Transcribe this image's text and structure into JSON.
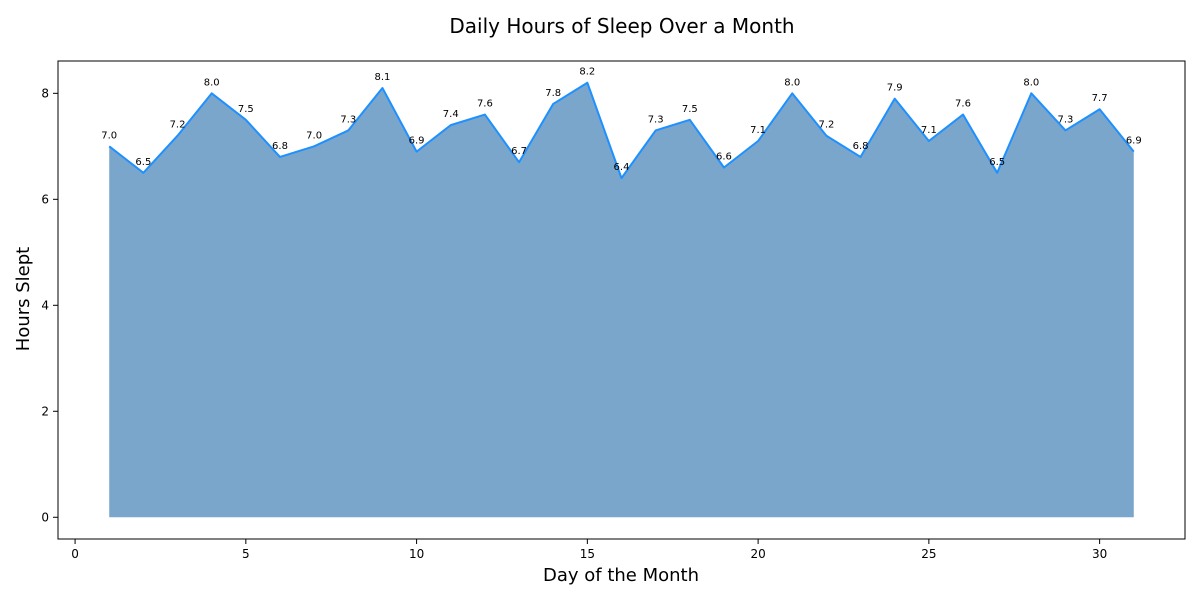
{
  "chart_data": {
    "type": "area",
    "title": "Daily Hours of Sleep Over a Month",
    "xlabel": "Day of the Month",
    "ylabel": "Hours Slept",
    "x": [
      1,
      2,
      3,
      4,
      5,
      6,
      7,
      8,
      9,
      10,
      11,
      12,
      13,
      14,
      15,
      16,
      17,
      18,
      19,
      20,
      21,
      22,
      23,
      24,
      25,
      26,
      27,
      28,
      29,
      30,
      31
    ],
    "values": [
      7.0,
      6.5,
      7.2,
      8.0,
      7.5,
      6.8,
      7.0,
      7.3,
      8.1,
      6.9,
      7.4,
      7.6,
      6.7,
      7.8,
      8.2,
      6.4,
      7.3,
      7.5,
      6.6,
      7.1,
      8.0,
      7.2,
      6.8,
      7.9,
      7.1,
      7.6,
      6.5,
      8.0,
      7.3,
      7.7,
      6.9
    ],
    "data_labels": [
      "7.0",
      "6.5",
      "7.2",
      "8.0",
      "7.5",
      "6.8",
      "7.0",
      "7.3",
      "8.1",
      "6.9",
      "7.4",
      "7.6",
      "6.7",
      "7.8",
      "8.2",
      "6.4",
      "7.3",
      "7.5",
      "6.6",
      "7.1",
      "8.0",
      "7.2",
      "6.8",
      "7.9",
      "7.1",
      "7.6",
      "6.5",
      "8.0",
      "7.3",
      "7.7",
      "6.9"
    ],
    "xlim": [
      -0.5,
      32.5
    ],
    "ylim": [
      -0.41,
      8.61
    ],
    "xticks": [
      0,
      5,
      10,
      15,
      20,
      25,
      30
    ],
    "xtick_labels": [
      "0",
      "5",
      "10",
      "15",
      "20",
      "25",
      "30"
    ],
    "yticks": [
      0,
      2,
      4,
      6,
      8
    ],
    "ytick_labels": [
      "0",
      "2",
      "4",
      "6",
      "8"
    ],
    "grid": false,
    "legend": false,
    "colors": {
      "fill": "#7aa6cb",
      "line": "#1e90ff",
      "axis": "#000000"
    }
  }
}
